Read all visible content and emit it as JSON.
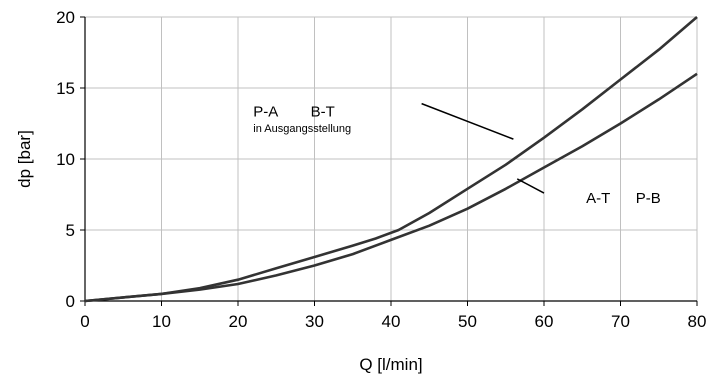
{
  "chart_data": {
    "type": "line",
    "title": "",
    "xlabel": "Q [l/min]",
    "ylabel": "dp [bar]",
    "xlim": [
      0,
      80
    ],
    "ylim": [
      0,
      20
    ],
    "xticks": [
      0,
      10,
      20,
      30,
      40,
      50,
      60,
      70,
      80
    ],
    "yticks": [
      0,
      5,
      10,
      15,
      20
    ],
    "grid": true,
    "legend": "none",
    "series": [
      {
        "x": [
          0,
          5,
          10,
          15,
          20,
          25,
          30,
          35,
          38,
          41,
          45,
          50,
          55,
          60,
          65,
          70,
          75,
          80
        ],
        "y": [
          0,
          0.25,
          0.5,
          0.9,
          1.5,
          2.3,
          3.1,
          3.9,
          4.4,
          5.0,
          6.2,
          7.9,
          9.6,
          11.5,
          13.5,
          15.6,
          17.7,
          20.0
        ]
      },
      {
        "x": [
          0,
          5,
          10,
          15,
          20,
          25,
          30,
          35,
          40,
          45,
          50,
          55,
          60,
          65,
          70,
          75,
          80
        ],
        "y": [
          0,
          0.25,
          0.5,
          0.8,
          1.2,
          1.8,
          2.5,
          3.3,
          4.3,
          5.3,
          6.5,
          7.9,
          9.4,
          10.9,
          12.5,
          14.2,
          16.0
        ]
      }
    ],
    "annotations": [
      {
        "text": "P-A",
        "x": 22,
        "y": 13
      },
      {
        "text": "B-T",
        "x": 29.5,
        "y": 13
      },
      {
        "text": "in Ausgangsstellung",
        "x": 22,
        "y": 11.9
      },
      {
        "text": "A-T",
        "x": 65.5,
        "y": 6.9
      },
      {
        "text": "P-B",
        "x": 72,
        "y": 6.9
      }
    ],
    "leader_lines": [
      {
        "x1": 44,
        "y1": 13.9,
        "x2": 56,
        "y2": 11.4
      },
      {
        "x1": 56.5,
        "y1": 8.6,
        "x2": 60,
        "y2": 7.6
      }
    ],
    "colors": {
      "line": "#333333",
      "grid": "#c0c0c0",
      "axis": "#000000"
    }
  }
}
